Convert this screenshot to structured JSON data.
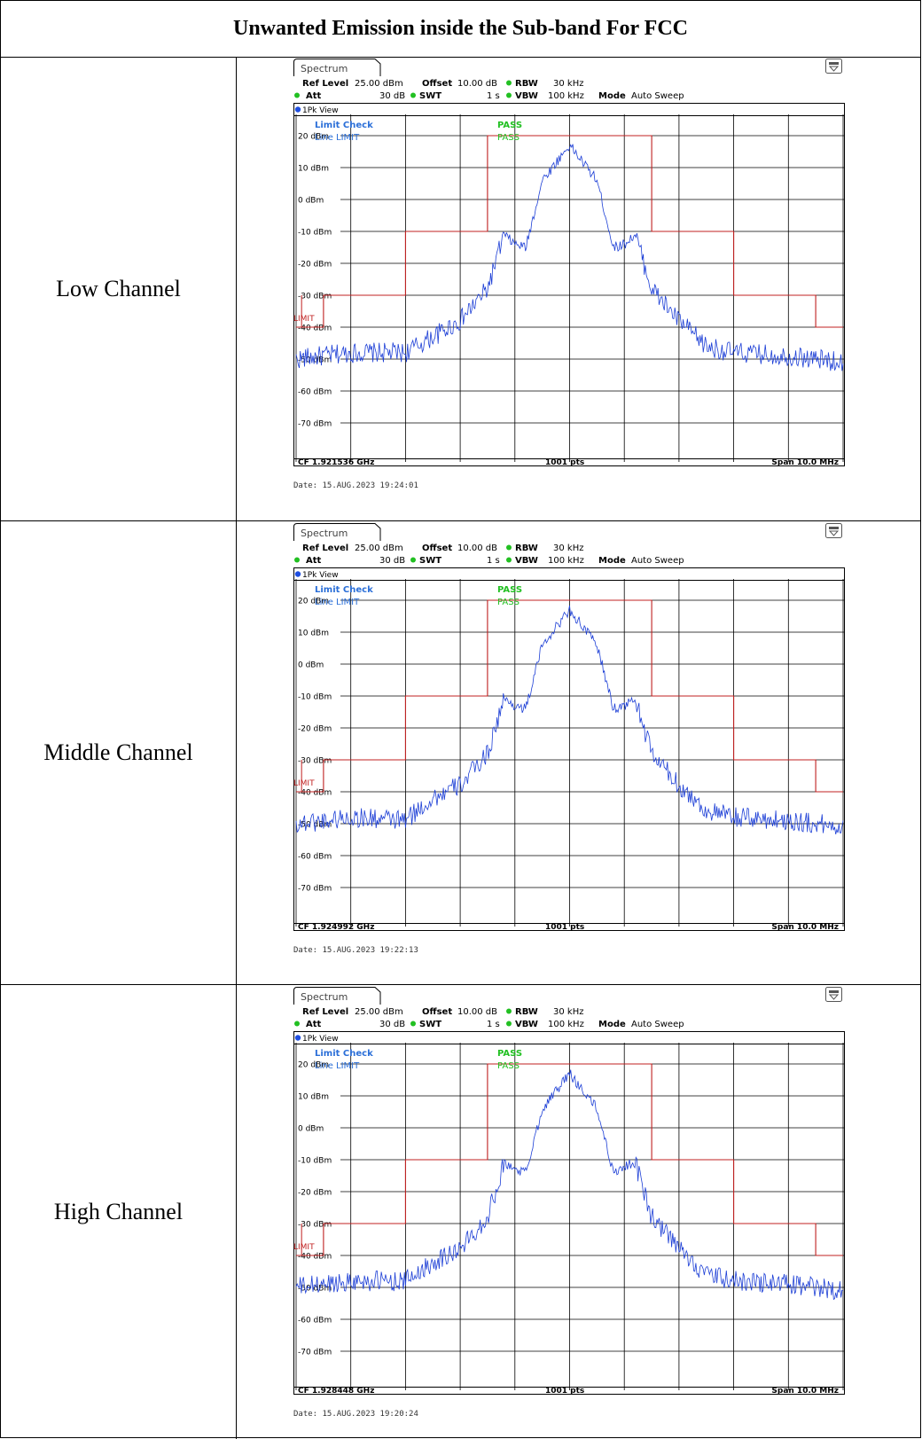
{
  "title": "Unwanted Emission inside the Sub-band For FCC",
  "colors": {
    "trace": "#1d3fd6",
    "limit": "#c02020",
    "pass": "#22c022",
    "info_blue": "#2b6fd8",
    "grid": "#000000"
  },
  "instrument": {
    "tab_label": "Spectrum",
    "ref_level_label": "Ref Level",
    "ref_level_value": "25.00 dBm",
    "offset_label": "Offset",
    "offset_value": "10.00 dB",
    "rbw_label": "RBW",
    "rbw_value": "30 kHz",
    "att_label": "Att",
    "att_value": "30 dB",
    "swt_label": "SWT",
    "swt_value": "1 s",
    "vbw_label": "VBW",
    "vbw_value": "100 kHz",
    "mode_label": "Mode",
    "mode_value": "Auto Sweep",
    "view_label": "1Pk View",
    "limit_check_label": "Limit Check",
    "line_label": "Line LIMIT",
    "pass_1": "PASS",
    "pass_2": "PASS",
    "limit_tag": "LIMIT",
    "pts_label": "1001 pts",
    "span_label": "Span 10.0 MHz"
  },
  "rows": [
    {
      "label": "Low Channel",
      "cf_label": "CF 1.921536 GHz",
      "date_label": "Date: 15.AUG.2023  19:24:01"
    },
    {
      "label": "Middle Channel",
      "cf_label": "CF 1.924992 GHz",
      "date_label": "Date: 15.AUG.2023  19:22:13"
    },
    {
      "label": "High Channel",
      "cf_label": "CF 1.928448 GHz",
      "date_label": "Date: 15.AUG.2023  19:20:24"
    }
  ],
  "chart_data": [
    {
      "type": "line",
      "title": "",
      "xlabel": "",
      "ylabel": "",
      "ylim": [
        -80,
        25
      ],
      "xlim": [
        -5,
        5
      ],
      "x_unit": "MHz offset from CF",
      "y_ticks": [
        "20 dBm",
        "10 dBm",
        "0 dBm",
        "-10 dBm",
        "-20 dBm",
        "-30 dBm",
        "-40 dBm",
        "-50 dBm",
        "-60 dBm",
        "-70 dBm"
      ],
      "series": [
        {
          "name": "LIMIT",
          "x": [
            -5,
            -4.5,
            -4.5,
            -3,
            -3,
            -1.5,
            -1.5,
            1.5,
            1.5,
            3,
            3,
            4.5,
            4.5,
            5
          ],
          "y": [
            -40,
            -40,
            -30,
            -30,
            -10,
            -10,
            20,
            20,
            -10,
            -10,
            -30,
            -30,
            -40,
            -40
          ]
        },
        {
          "name": "1Pk",
          "x": [
            -5,
            -4,
            -3,
            -2.5,
            -2,
            -1.5,
            -1.2,
            -1,
            -0.8,
            -0.5,
            0,
            0.5,
            0.8,
            1,
            1.2,
            1.5,
            2,
            2.5,
            3,
            4,
            5
          ],
          "y": [
            -50,
            -48,
            -48,
            -43,
            -38,
            -28,
            -11,
            -14,
            -15,
            6,
            17,
            6,
            -15,
            -14,
            -11,
            -28,
            -38,
            -46,
            -48,
            -49,
            -51
          ]
        }
      ]
    },
    {
      "type": "line",
      "title": "",
      "xlabel": "",
      "ylabel": "",
      "ylim": [
        -80,
        25
      ],
      "xlim": [
        -5,
        5
      ],
      "x_unit": "MHz offset from CF",
      "y_ticks": [
        "20 dBm",
        "10 dBm",
        "0 dBm",
        "-10 dBm",
        "-20 dBm",
        "-30 dBm",
        "-40 dBm",
        "-50 dBm",
        "-60 dBm",
        "-70 dBm"
      ],
      "series": [
        {
          "name": "LIMIT",
          "x": [
            -5,
            -4.5,
            -4.5,
            -3,
            -3,
            -1.5,
            -1.5,
            1.5,
            1.5,
            3,
            3,
            4.5,
            4.5,
            5
          ],
          "y": [
            -40,
            -40,
            -30,
            -30,
            -10,
            -10,
            20,
            20,
            -10,
            -10,
            -30,
            -30,
            -40,
            -40
          ]
        },
        {
          "name": "1Pk",
          "x": [
            -5,
            -4,
            -3,
            -2.5,
            -2,
            -1.5,
            -1.2,
            -1,
            -0.8,
            -0.5,
            0,
            0.5,
            0.8,
            1,
            1.2,
            1.5,
            2,
            2.5,
            3,
            4,
            5
          ],
          "y": [
            -50,
            -48,
            -49,
            -42,
            -38,
            -28,
            -11,
            -13,
            -14,
            6,
            17,
            6,
            -14,
            -13,
            -11,
            -28,
            -38,
            -46,
            -48,
            -49,
            -51
          ]
        }
      ]
    },
    {
      "type": "line",
      "title": "",
      "xlabel": "",
      "ylabel": "",
      "ylim": [
        -80,
        25
      ],
      "xlim": [
        -5,
        5
      ],
      "x_unit": "MHz offset from CF",
      "y_ticks": [
        "20 dBm",
        "10 dBm",
        "0 dBm",
        "-10 dBm",
        "-20 dBm",
        "-30 dBm",
        "-40 dBm",
        "-50 dBm",
        "-60 dBm",
        "-70 dBm"
      ],
      "series": [
        {
          "name": "LIMIT",
          "x": [
            -5,
            -4.5,
            -4.5,
            -3,
            -3,
            -1.5,
            -1.5,
            1.5,
            1.5,
            3,
            3,
            4.5,
            4.5,
            5
          ],
          "y": [
            -40,
            -40,
            -30,
            -30,
            -10,
            -10,
            20,
            20,
            -10,
            -10,
            -30,
            -30,
            -40,
            -40
          ]
        },
        {
          "name": "1Pk",
          "x": [
            -5,
            -4,
            -3,
            -2.5,
            -2,
            -1.5,
            -1.2,
            -1,
            -0.8,
            -0.5,
            0,
            0.5,
            0.8,
            1,
            1.2,
            1.5,
            2,
            2.5,
            3,
            4,
            5
          ],
          "y": [
            -50,
            -48,
            -48,
            -42,
            -38,
            -28,
            -11,
            -13,
            -14,
            6,
            17,
            6,
            -14,
            -12,
            -11,
            -28,
            -38,
            -46,
            -48,
            -49,
            -51
          ]
        }
      ]
    }
  ]
}
